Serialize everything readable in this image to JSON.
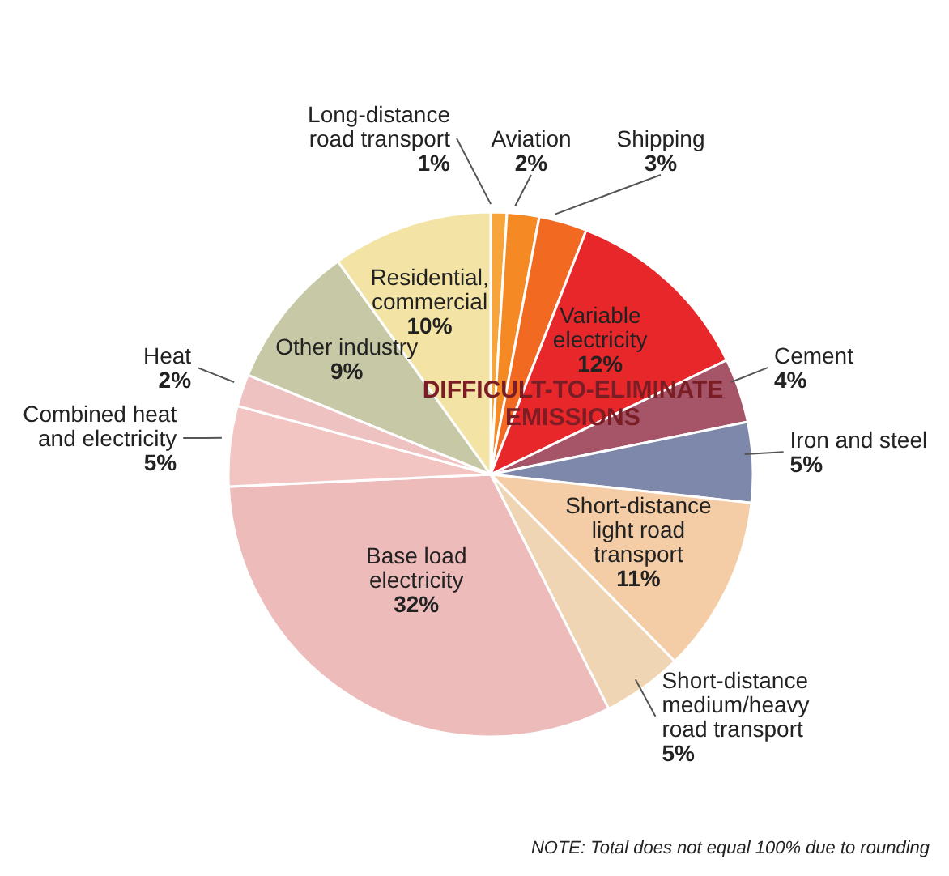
{
  "chart_data": {
    "type": "pie",
    "categories": [
      "Long-distance road transport",
      "Aviation",
      "Shipping",
      "Variable electricity",
      "Cement",
      "Iron and steel",
      "Short-distance light road transport",
      "Short-distance medium/heavy road transport",
      "Base load electricity",
      "Combined heat and electricity",
      "Heat",
      "Other industry",
      "Residential, commercial"
    ],
    "values": [
      1,
      2,
      3,
      12,
      4,
      5,
      11,
      5,
      32,
      5,
      2,
      9,
      10
    ],
    "value_labels": [
      "1%",
      "2%",
      "3%",
      "12%",
      "4%",
      "5%",
      "11%",
      "5%",
      "32%",
      "5%",
      "2%",
      "9%",
      "10%"
    ],
    "colors": [
      "#f7a43a",
      "#f58a25",
      "#f26a22",
      "#e8272b",
      "#a65468",
      "#7d88aa",
      "#f4cda6",
      "#efd5b3",
      "#eebbbb",
      "#f2c4c2",
      "#efc2c2",
      "#c6c8a6",
      "#f3e3a4"
    ],
    "annotations": [
      "DIFFICULT-TO-ELIMINATE EMISSIONS",
      "NOTE: Total does not equal 100% due to rounding"
    ],
    "legend": false
  }
}
